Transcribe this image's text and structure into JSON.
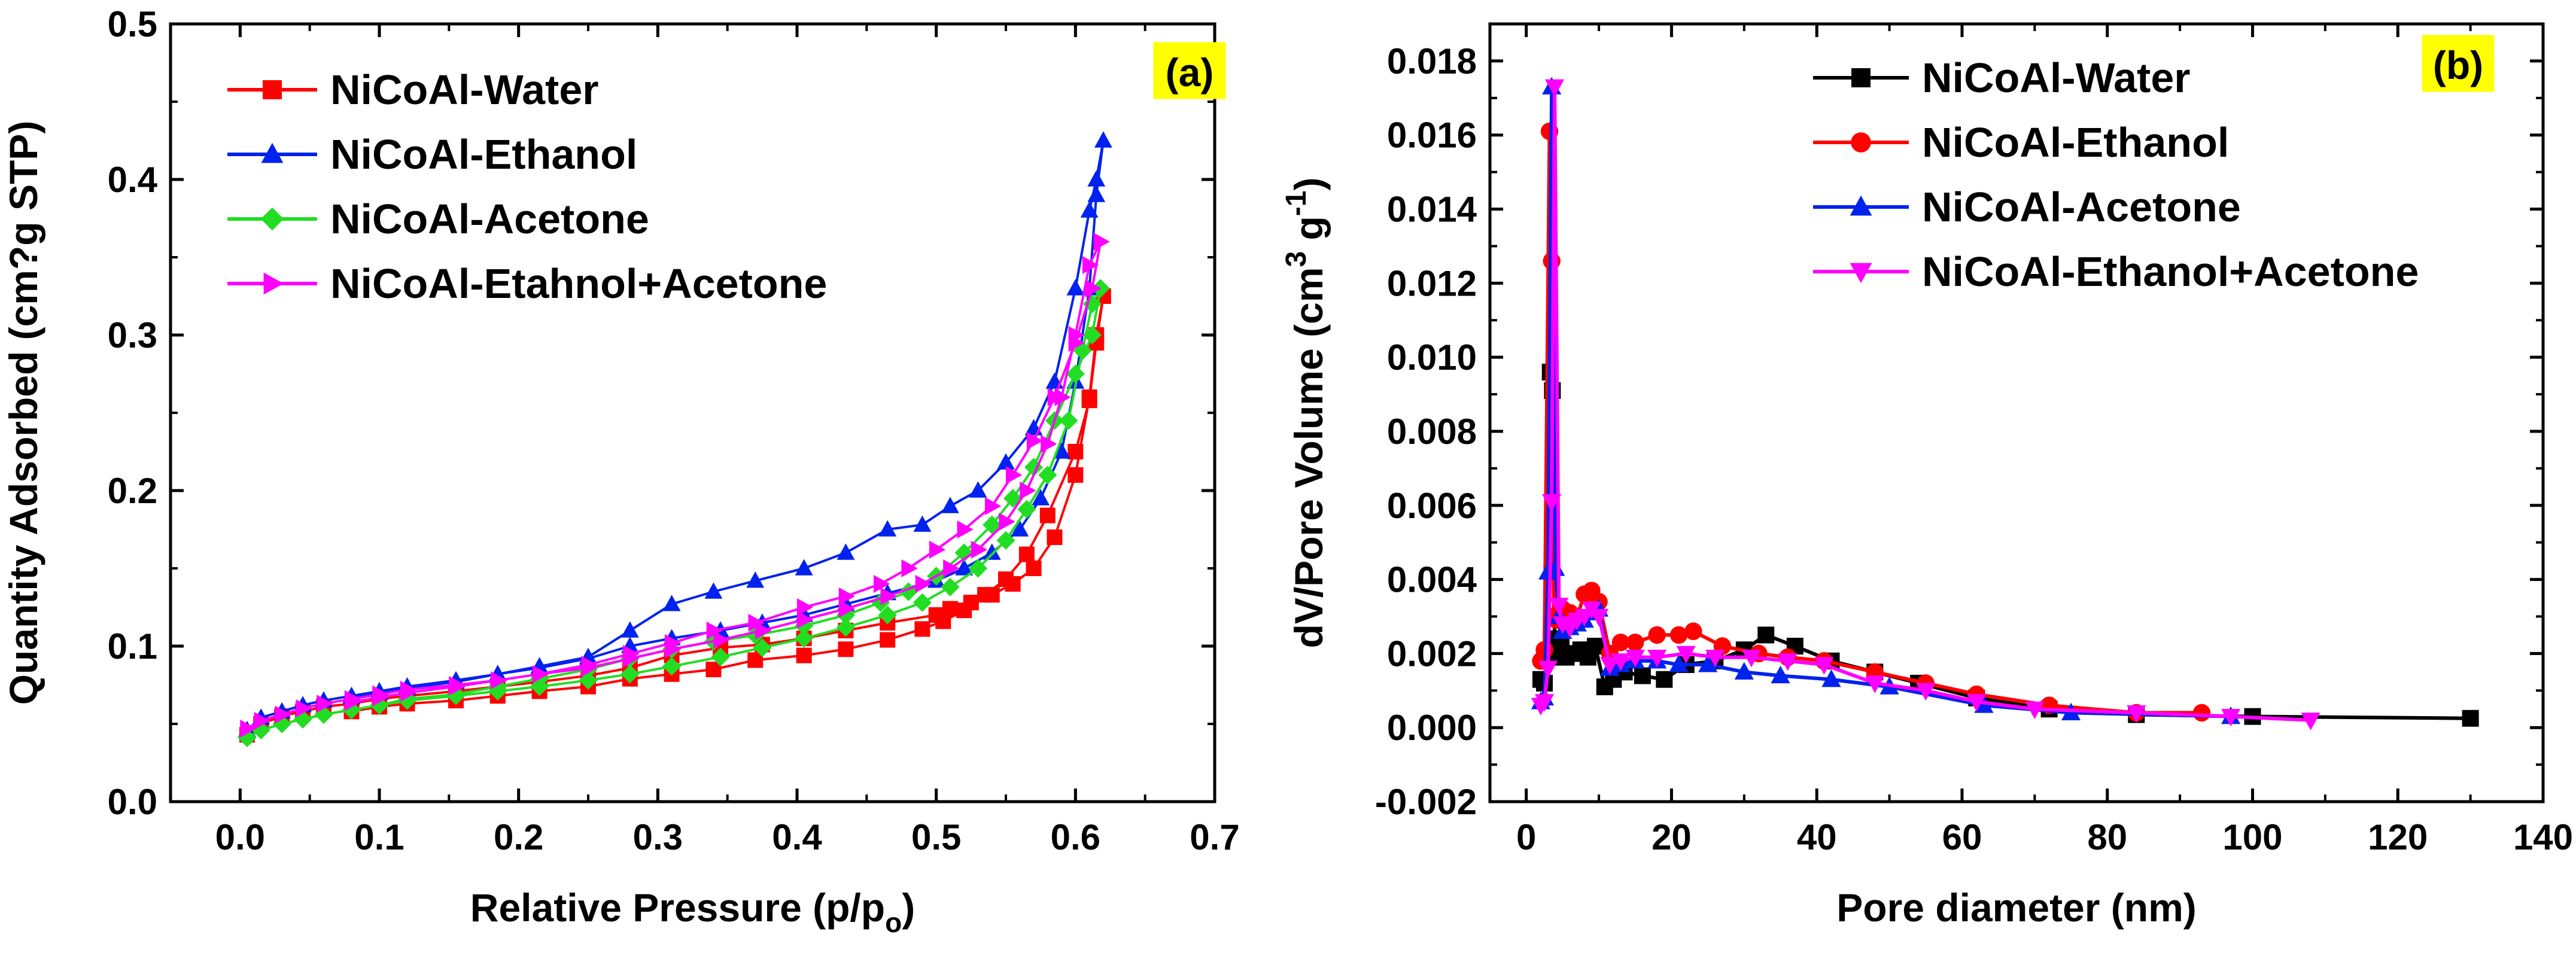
{
  "colors": {
    "water_a": "#ff0000",
    "ethanol_a": "#0022ee",
    "acetone_a": "#22dd22",
    "mix_a": "#ff00ff",
    "water_b": "#000000",
    "ethanol_b": "#ff0000",
    "acetone_b": "#0022ee",
    "mix_b": "#ff00ff",
    "panel_bg": "#ffff00"
  },
  "chart_data": [
    {
      "type": "scatter",
      "panel_label": "(a)",
      "xlabel": "Relative Pressure (p/p",
      "xlabel_sub": "o",
      "xlabel_end": ")",
      "ylabel": "Quantity Adsorbed (cm?g STP)",
      "xlim": [
        -0.05,
        0.7
      ],
      "ylim": [
        0.0,
        0.5
      ],
      "xticks": [
        "0.0",
        "0.1",
        "0.2",
        "0.3",
        "0.4",
        "0.5",
        "0.6",
        "0.7"
      ],
      "yticks": [
        "0.0",
        "0.1",
        "0.2",
        "0.3",
        "0.4",
        "0.5"
      ],
      "legend_position": "top-left",
      "series": [
        {
          "name": "NiCoAl-Water",
          "marker": "square",
          "color_key": "water_a",
          "x": [
            0.005,
            0.015,
            0.03,
            0.045,
            0.06,
            0.08,
            0.1,
            0.12,
            0.155,
            0.185,
            0.215,
            0.25,
            0.28,
            0.31,
            0.345,
            0.375,
            0.405,
            0.435,
            0.465,
            0.5,
            0.51,
            0.525,
            0.54,
            0.555,
            0.57,
            0.585,
            0.6,
            0.61,
            0.615,
            0.62,
            0.615,
            0.61,
            0.6,
            0.58,
            0.565,
            0.55,
            0.535,
            0.52,
            0.505,
            0.49,
            0.465,
            0.435,
            0.405,
            0.37,
            0.34,
            0.31,
            0.28,
            0.25,
            0.215,
            0.185,
            0.155,
            0.12,
            0.1,
            0.08
          ],
          "y": [
            0.043,
            0.05,
            0.055,
            0.058,
            0.061,
            0.063,
            0.066,
            0.068,
            0.071,
            0.074,
            0.077,
            0.081,
            0.086,
            0.094,
            0.099,
            0.101,
            0.105,
            0.11,
            0.115,
            0.12,
            0.124,
            0.128,
            0.133,
            0.14,
            0.15,
            0.17,
            0.21,
            0.26,
            0.3,
            0.325,
            0.295,
            0.258,
            0.225,
            0.184,
            0.159,
            0.143,
            0.133,
            0.123,
            0.116,
            0.111,
            0.104,
            0.098,
            0.094,
            0.091,
            0.085,
            0.082,
            0.079,
            0.074,
            0.071,
            0.068,
            0.065,
            0.063,
            0.061,
            0.058
          ]
        },
        {
          "name": "NiCoAl-Ethanol",
          "marker": "triangle-up",
          "color_key": "ethanol_a",
          "x": [
            0.005,
            0.015,
            0.03,
            0.045,
            0.06,
            0.08,
            0.1,
            0.12,
            0.155,
            0.185,
            0.215,
            0.25,
            0.28,
            0.31,
            0.345,
            0.375,
            0.405,
            0.435,
            0.465,
            0.5,
            0.52,
            0.54,
            0.56,
            0.575,
            0.59,
            0.6,
            0.61,
            0.615,
            0.62,
            0.615,
            0.61,
            0.6,
            0.585,
            0.57,
            0.55,
            0.53,
            0.51,
            0.49,
            0.465,
            0.435,
            0.405,
            0.37,
            0.34,
            0.31,
            0.28,
            0.25,
            0.215,
            0.185,
            0.155,
            0.12,
            0.1,
            0.08
          ],
          "y": [
            0.046,
            0.054,
            0.058,
            0.062,
            0.065,
            0.068,
            0.071,
            0.074,
            0.078,
            0.082,
            0.086,
            0.092,
            0.1,
            0.105,
            0.11,
            0.115,
            0.12,
            0.127,
            0.134,
            0.142,
            0.15,
            0.16,
            0.175,
            0.195,
            0.225,
            0.27,
            0.33,
            0.39,
            0.425,
            0.4,
            0.38,
            0.33,
            0.27,
            0.24,
            0.218,
            0.2,
            0.19,
            0.178,
            0.175,
            0.16,
            0.15,
            0.142,
            0.135,
            0.127,
            0.11,
            0.093,
            0.087,
            0.082,
            0.077,
            0.073,
            0.07,
            0.067
          ]
        },
        {
          "name": "NiCoAl-Acetone",
          "marker": "diamond",
          "color_key": "acetone_a",
          "x": [
            0.005,
            0.015,
            0.03,
            0.045,
            0.06,
            0.08,
            0.1,
            0.12,
            0.155,
            0.185,
            0.215,
            0.25,
            0.28,
            0.31,
            0.345,
            0.375,
            0.405,
            0.435,
            0.465,
            0.49,
            0.51,
            0.53,
            0.55,
            0.565,
            0.58,
            0.595,
            0.605,
            0.612,
            0.618,
            0.612,
            0.6,
            0.585,
            0.57,
            0.555,
            0.54,
            0.52,
            0.5,
            0.48,
            0.46,
            0.435,
            0.405,
            0.37,
            0.34,
            0.31,
            0.28,
            0.25,
            0.215,
            0.185,
            0.155,
            0.12,
            0.1,
            0.08
          ],
          "y": [
            0.041,
            0.046,
            0.05,
            0.053,
            0.056,
            0.059,
            0.062,
            0.065,
            0.068,
            0.071,
            0.074,
            0.078,
            0.082,
            0.087,
            0.093,
            0.099,
            0.105,
            0.112,
            0.12,
            0.128,
            0.138,
            0.15,
            0.168,
            0.188,
            0.21,
            0.245,
            0.29,
            0.32,
            0.33,
            0.3,
            0.275,
            0.245,
            0.215,
            0.195,
            0.178,
            0.16,
            0.145,
            0.135,
            0.128,
            0.12,
            0.113,
            0.107,
            0.103,
            0.098,
            0.092,
            0.085,
            0.079,
            0.074,
            0.069,
            0.066,
            0.062,
            0.059
          ]
        },
        {
          "name": "NiCoAl-Etahnol+Acetone",
          "marker": "triangle-right",
          "color_key": "mix_a",
          "x": [
            0.005,
            0.015,
            0.03,
            0.045,
            0.06,
            0.08,
            0.1,
            0.12,
            0.155,
            0.185,
            0.215,
            0.25,
            0.28,
            0.31,
            0.345,
            0.375,
            0.405,
            0.435,
            0.465,
            0.49,
            0.51,
            0.53,
            0.55,
            0.565,
            0.58,
            0.59,
            0.6,
            0.61,
            0.618,
            0.612,
            0.6,
            0.585,
            0.57,
            0.555,
            0.54,
            0.52,
            0.5,
            0.48,
            0.46,
            0.435,
            0.405,
            0.37,
            0.34,
            0.31,
            0.28,
            0.25,
            0.215,
            0.185,
            0.155,
            0.12,
            0.1,
            0.08
          ],
          "y": [
            0.047,
            0.052,
            0.056,
            0.06,
            0.063,
            0.066,
            0.069,
            0.072,
            0.075,
            0.078,
            0.082,
            0.086,
            0.092,
            0.098,
            0.104,
            0.11,
            0.117,
            0.124,
            0.132,
            0.14,
            0.15,
            0.162,
            0.18,
            0.2,
            0.23,
            0.26,
            0.3,
            0.345,
            0.36,
            0.33,
            0.295,
            0.26,
            0.232,
            0.21,
            0.19,
            0.175,
            0.162,
            0.15,
            0.14,
            0.132,
            0.125,
            0.115,
            0.11,
            0.102,
            0.095,
            0.088,
            0.082,
            0.078,
            0.074,
            0.07,
            0.067,
            0.064
          ]
        }
      ]
    },
    {
      "type": "line",
      "panel_label": "(b)",
      "xlabel": "Pore diameter (nm)",
      "ylabel": "dV/Pore Volume (cm",
      "ylabel_sup1": "3",
      "ylabel_mid": " g",
      "ylabel_sup2": "-1",
      "ylabel_end": ")",
      "xlim": [
        -5,
        140
      ],
      "ylim": [
        -0.002,
        0.019
      ],
      "xticks": [
        "0",
        "20",
        "40",
        "60",
        "80",
        "100",
        "120",
        "140"
      ],
      "yticks": [
        "-0.002",
        "0.000",
        "0.002",
        "0.004",
        "0.006",
        "0.008",
        "0.010",
        "0.012",
        "0.014",
        "0.016",
        "0.018"
      ],
      "legend_position": "top-right",
      "series": [
        {
          "name": "NiCoAl-Water",
          "marker": "square",
          "color_key": "water_b",
          "x": [
            2.0,
            2.5,
            3.0,
            3.3,
            3.6,
            3.9,
            4.3,
            4.8,
            5.5,
            6.5,
            7.5,
            8.5,
            9.5,
            10.8,
            12,
            13.5,
            16,
            19,
            22,
            26,
            30,
            33,
            37,
            42,
            48,
            54,
            62,
            72,
            84,
            100,
            130
          ],
          "y": [
            0.0013,
            0.0012,
            0.002,
            0.0096,
            0.0091,
            0.0024,
            0.0019,
            0.0022,
            0.0019,
            0.002,
            0.0021,
            0.0019,
            0.0022,
            0.0011,
            0.0013,
            0.0015,
            0.0014,
            0.0013,
            0.0017,
            0.0018,
            0.0021,
            0.0025,
            0.0022,
            0.0018,
            0.0015,
            0.0012,
            0.0008,
            0.0005,
            0.00035,
            0.0003,
            0.00025
          ]
        },
        {
          "name": "NiCoAl-Ethanol",
          "marker": "circle",
          "color_key": "ethanol_b",
          "x": [
            2.0,
            2.5,
            3.2,
            3.5,
            3.8,
            4.2,
            5.0,
            6.0,
            7.0,
            8.0,
            9.0,
            10.0,
            11.5,
            13,
            15,
            18,
            21,
            23,
            27,
            32,
            36,
            41,
            48,
            55,
            62,
            72,
            84,
            93
          ],
          "y": [
            0.0018,
            0.0021,
            0.0161,
            0.0126,
            0.003,
            0.0029,
            0.0032,
            0.0031,
            0.003,
            0.0036,
            0.0037,
            0.0034,
            0.002,
            0.0023,
            0.0023,
            0.0025,
            0.0025,
            0.0026,
            0.0022,
            0.002,
            0.0019,
            0.0018,
            0.0015,
            0.0012,
            0.0009,
            0.0006,
            0.0004,
            0.0004
          ]
        },
        {
          "name": "NiCoAl-Acetone",
          "marker": "triangle-up",
          "color_key": "acetone_b",
          "x": [
            2.0,
            2.5,
            3.0,
            3.5,
            4.0,
            4.5,
            5.0,
            6.0,
            7.0,
            8.0,
            9.0,
            10.0,
            11.5,
            13,
            15,
            18,
            21,
            25,
            30,
            35,
            42,
            50,
            63,
            75,
            97
          ],
          "y": [
            0.0007,
            0.0008,
            0.0042,
            0.0173,
            0.0043,
            0.003,
            0.0026,
            0.0027,
            0.0028,
            0.0029,
            0.0031,
            0.0032,
            0.0016,
            0.0017,
            0.0018,
            0.0018,
            0.0017,
            0.0017,
            0.0015,
            0.0014,
            0.0013,
            0.0011,
            0.0006,
            0.0004,
            0.0003
          ]
        },
        {
          "name": "NiCoAl-Ethanol+Acetone",
          "marker": "triangle-down",
          "color_key": "mix_b",
          "x": [
            2.0,
            2.5,
            3.0,
            3.5,
            3.9,
            4.5,
            5.0,
            6.0,
            7.0,
            8.0,
            9.0,
            10.0,
            11.5,
            13,
            15,
            18,
            22,
            26,
            31,
            36,
            41,
            48,
            55,
            62,
            70,
            84,
            97,
            108
          ],
          "y": [
            0.0006,
            0.0007,
            0.0016,
            0.0061,
            0.0173,
            0.0033,
            0.0028,
            0.0027,
            0.0029,
            0.003,
            0.0032,
            0.003,
            0.0017,
            0.0018,
            0.0019,
            0.0019,
            0.002,
            0.0019,
            0.0019,
            0.0018,
            0.0017,
            0.0012,
            0.001,
            0.0007,
            0.0005,
            0.0004,
            0.0003,
            0.0002
          ]
        }
      ]
    }
  ]
}
